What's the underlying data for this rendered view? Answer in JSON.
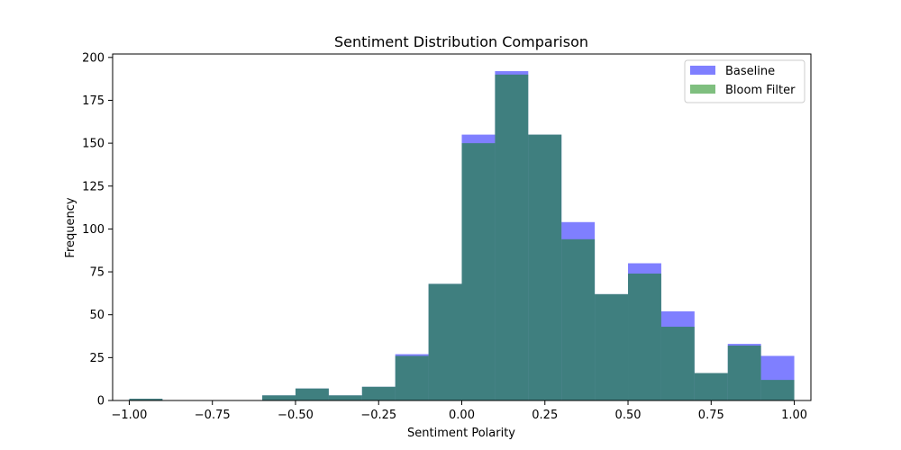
{
  "chart_data": {
    "type": "bar",
    "title": "Sentiment Distribution Comparison",
    "xlabel": "Sentiment Polarity",
    "ylabel": "Frequency",
    "xlim": [
      -1.05,
      1.05
    ],
    "ylim": [
      0,
      202
    ],
    "xticks": [
      -1.0,
      -0.75,
      -0.5,
      -0.25,
      0.0,
      0.25,
      0.5,
      0.75,
      1.0
    ],
    "xtick_labels": [
      "−1.00",
      "−0.75",
      "−0.50",
      "−0.25",
      "0.00",
      "0.25",
      "0.50",
      "0.75",
      "1.00"
    ],
    "yticks": [
      0,
      25,
      50,
      75,
      100,
      125,
      150,
      175,
      200
    ],
    "ytick_labels": [
      "0",
      "25",
      "50",
      "75",
      "100",
      "125",
      "150",
      "175",
      "200"
    ],
    "bin_edges": [
      -1.0,
      -0.9,
      -0.8,
      -0.7,
      -0.6,
      -0.5,
      -0.4,
      -0.3,
      -0.2,
      -0.1,
      0.0,
      0.1,
      0.2,
      0.3,
      0.4,
      0.5,
      0.6,
      0.7,
      0.8,
      0.9,
      1.0
    ],
    "series": [
      {
        "name": "Baseline",
        "color": "#0000ff",
        "opacity": 0.5,
        "values": [
          1,
          0,
          0,
          0,
          3,
          7,
          3,
          8,
          27,
          68,
          155,
          192,
          155,
          104,
          62,
          80,
          52,
          16,
          33,
          26
        ]
      },
      {
        "name": "Bloom Filter",
        "color": "#008000",
        "opacity": 0.5,
        "values": [
          1,
          0,
          0,
          0,
          3,
          7,
          3,
          8,
          26,
          68,
          150,
          190,
          155,
          94,
          62,
          74,
          43,
          16,
          32,
          12
        ]
      }
    ],
    "legend_position": "top-right",
    "grid": false
  }
}
